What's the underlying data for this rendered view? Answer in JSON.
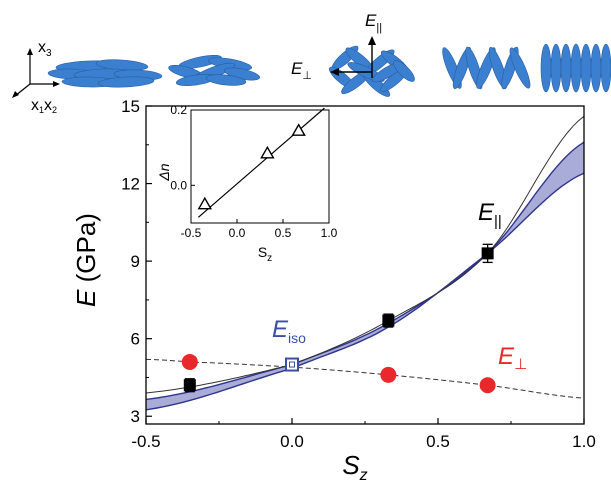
{
  "chart_data": {
    "type": "scatter",
    "xlabel": "S",
    "xlabel_sub": "z",
    "ylabel": "E (GPa)",
    "ylabel_var": "E",
    "ylabel_unit": " (GPa)",
    "xlim": [
      -0.5,
      1.0
    ],
    "ylim": [
      2.7,
      15
    ],
    "xticks": [
      -0.5,
      0.0,
      0.5,
      1.0
    ],
    "xtick_labels": [
      "-0.5",
      "0.0",
      "0.5",
      "1.0"
    ],
    "yticks": [
      3,
      6,
      9,
      12,
      15
    ],
    "ytick_labels": [
      "3",
      "6",
      "9",
      "12",
      "15"
    ],
    "grid": false,
    "series": [
      {
        "name": "E∥",
        "var": "E",
        "sub": "||",
        "color": "#000000",
        "marker": "square",
        "x": [
          -0.35,
          0.33,
          0.67
        ],
        "y": [
          4.2,
          6.7,
          9.3
        ],
        "yerr": [
          0.25,
          0.25,
          0.35
        ]
      },
      {
        "name": "E⊥",
        "var": "E",
        "sub": "⊥",
        "color": "#e8282a",
        "marker": "circle",
        "x": [
          -0.35,
          0.33,
          0.67
        ],
        "y": [
          5.1,
          4.6,
          4.2
        ]
      },
      {
        "name": "Eiso",
        "var": "E",
        "sub": "iso",
        "color": "#3a4ea8",
        "marker": "open-square",
        "x": [
          0.0
        ],
        "y": [
          5.0
        ]
      }
    ],
    "curves": [
      {
        "id": "perp-dashed",
        "style": "dashed",
        "color": "#333333",
        "x": [
          -0.5,
          -0.35,
          0,
          0.33,
          0.67,
          1.0
        ],
        "y": [
          5.2,
          5.1,
          4.9,
          4.6,
          4.2,
          3.7
        ]
      },
      {
        "id": "thin-black",
        "style": "solid",
        "color": "#333333",
        "x": [
          -0.5,
          0,
          0.33,
          0.67,
          1.0
        ],
        "y": [
          3.9,
          5.0,
          6.7,
          9.3,
          14.6
        ]
      },
      {
        "id": "band-upper",
        "color": "#2e3490",
        "x": [
          -0.5,
          0,
          0.33,
          0.67,
          1.0
        ],
        "y": [
          3.65,
          5.0,
          6.6,
          9.3,
          13.6
        ]
      },
      {
        "id": "band-lower",
        "color": "#2e3490",
        "x": [
          -0.5,
          0,
          0.33,
          0.67,
          1.0
        ],
        "y": [
          3.25,
          4.85,
          6.45,
          9.3,
          12.4
        ]
      }
    ],
    "inset": {
      "xlabel": "S",
      "xlabel_sub": "z",
      "ylabel": "Δn",
      "xlim": [
        -0.5,
        1.0
      ],
      "ylim": [
        -0.1,
        0.2
      ],
      "xticks": [
        -0.5,
        0.0,
        0.5,
        1.0
      ],
      "xtick_labels": [
        "-0.5",
        "0.0",
        "0.5",
        "1.0"
      ],
      "yticks": [
        0.0,
        0.2
      ],
      "ytick_labels": [
        "0.0",
        "0.2"
      ],
      "points": {
        "marker": "open-triangle",
        "x": [
          -0.35,
          0.33,
          0.67
        ],
        "y": [
          -0.05,
          0.085,
          0.145
        ]
      },
      "fit_line": {
        "x": [
          -0.42,
          0.95
        ],
        "y": [
          -0.085,
          0.205
        ]
      }
    }
  },
  "labels": {
    "e_par": {
      "var": "E",
      "sub": "||"
    },
    "e_perp": {
      "var": "E",
      "sub": "⊥"
    },
    "e_iso": {
      "var": "E",
      "sub": "iso"
    },
    "x3": {
      "var": "x",
      "sub": "3"
    },
    "x1x2": {
      "var1": "x",
      "sub1": "1",
      "var2": "x",
      "sub2": "2"
    },
    "schematic_e_par": {
      "var": "E",
      "sub": "||"
    },
    "schematic_e_perp": {
      "var": "E",
      "sub": "⊥"
    }
  },
  "colors": {
    "ellipse": "#3a7fd0",
    "ellipse_edge": "#2a5ea0",
    "band": "#a8acd6",
    "band_edge": "#2e3490",
    "red": "#e8282a",
    "blue_label": "#3a4ea8"
  }
}
